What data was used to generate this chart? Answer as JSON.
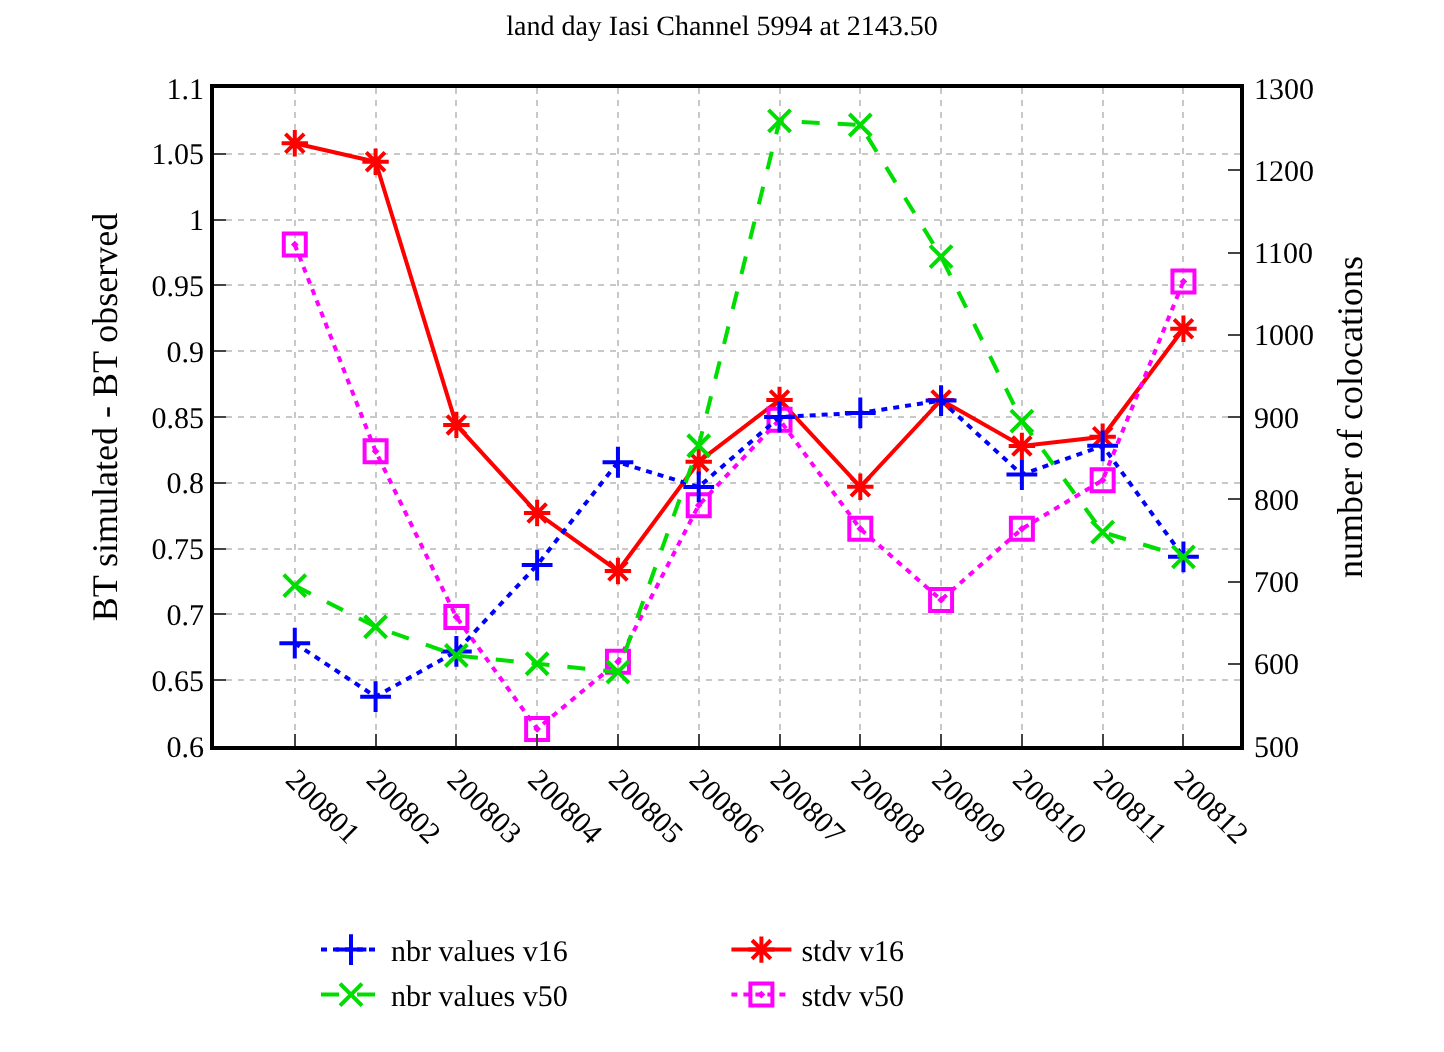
{
  "chart_data": {
    "type": "line",
    "title": "land day Iasi Channel 5994 at 2143.50",
    "ylabel": "BT simulated - BT observed",
    "y2label": "number of colocations",
    "categories": [
      "200801",
      "200802",
      "200803",
      "200804",
      "200805",
      "200806",
      "200807",
      "200808",
      "200809",
      "200810",
      "200811",
      "200812"
    ],
    "series": [
      {
        "name": "nbr values v16",
        "color": "#0000ff",
        "axis": "y2",
        "line_style": "dotted",
        "marker": "cross",
        "values": [
          625,
          560,
          615,
          720,
          845,
          815,
          900,
          905,
          920,
          830,
          865,
          730
        ]
      },
      {
        "name": "stdv v16",
        "color": "#ff0000",
        "line_style": "solid",
        "marker": "cross",
        "values": [
          1.058,
          1.044,
          0.844,
          0.777,
          0.733,
          0.816,
          0.863,
          0.797,
          0.863,
          0.828,
          0.835,
          0.917
        ]
      },
      {
        "name": "nbr values v50",
        "color": "#00dd00",
        "axis": "y2",
        "line_style": "dashed",
        "marker": "x",
        "values": [
          695,
          645,
          610,
          600,
          590,
          865,
          1260,
          1255,
          1095,
          895,
          760,
          730
        ]
      },
      {
        "name": "stdv v50",
        "color": "#ff00ff",
        "line_style": "dotted",
        "marker": "square",
        "values": [
          0.981,
          0.824,
          0.698,
          0.613,
          0.664,
          0.783,
          0.848,
          0.765,
          0.711,
          0.765,
          0.802,
          0.953
        ]
      }
    ],
    "ylim": [
      0.6,
      1.1
    ],
    "yticks": [
      0.6,
      0.65,
      0.7,
      0.75,
      0.8,
      0.85,
      0.9,
      0.95,
      1,
      1.05,
      1.1
    ],
    "y2lim": [
      500,
      1300
    ],
    "y2ticks": [
      500,
      600,
      700,
      800,
      900,
      1000,
      1100,
      1200,
      1300
    ],
    "grid": true,
    "legend": "bottom"
  }
}
